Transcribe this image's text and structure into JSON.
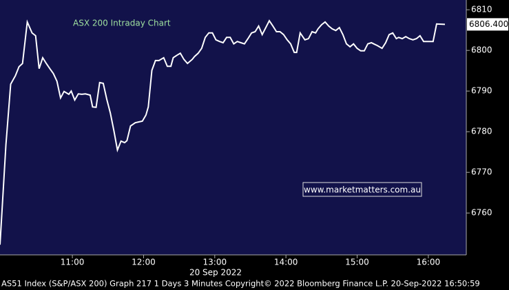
{
  "chart_data": {
    "type": "line",
    "title": "ASX 200 Intraday Chart",
    "x_label": "20 Sep 2022",
    "footer": "AS51 Index (S&P/ASX 200) Graph 217 1 Days 3 Minutes   Copyright© 2022 Bloomberg Finance L.P.   20-Sep-2022 16:50:59",
    "watermark": "www.marketmatters.com.au",
    "color": "#ffffff",
    "grid": false,
    "x": [
      599,
      604,
      608,
      612,
      615,
      618,
      622,
      626,
      629,
      632,
      635,
      638,
      641,
      644,
      647,
      650,
      653,
      657,
      659,
      662,
      665,
      668,
      671,
      675,
      677,
      680,
      683,
      686,
      689,
      692,
      695,
      698,
      701,
      704,
      706,
      709,
      713,
      716,
      719,
      722,
      724,
      727,
      730,
      733,
      737,
      740,
      743,
      745,
      748,
      751,
      754,
      757,
      761,
      763,
      766,
      769,
      772,
      775,
      778,
      781,
      784,
      787,
      790,
      793,
      796,
      799,
      802,
      805,
      808,
      811,
      814,
      817,
      820,
      823,
      826,
      829,
      832,
      835,
      838,
      841,
      844,
      847,
      849,
      852,
      856,
      859,
      862,
      865,
      867,
      870,
      873,
      876,
      879,
      882,
      885,
      888,
      891,
      894,
      897,
      900,
      903,
      906,
      909,
      912,
      914,
      917,
      921,
      924,
      927,
      930,
      933,
      935,
      938,
      941,
      944,
      947,
      950,
      953,
      956,
      959,
      962,
      964,
      967,
      974
    ],
    "values": [
      6752.2,
      6776.8,
      6791.7,
      6793.8,
      6796.0,
      6796.8,
      6807.0,
      6804.3,
      6803.6,
      6795.5,
      6798.2,
      6796.8,
      6795.5,
      6794.3,
      6792.4,
      6788.3,
      6789.9,
      6789.2,
      6790.0,
      6787.8,
      6789.3,
      6789.2,
      6789.3,
      6789.0,
      6786.1,
      6786.0,
      6792.1,
      6791.9,
      6788.0,
      6784.6,
      6780.2,
      6775.5,
      6777.7,
      6777.3,
      6777.8,
      6781.4,
      6782.2,
      6782.4,
      6782.6,
      6784.1,
      6786.1,
      6795.1,
      6797.5,
      6797.5,
      6798.2,
      6796.1,
      6796.1,
      6798.2,
      6798.8,
      6799.3,
      6797.8,
      6796.8,
      6797.8,
      6798.5,
      6799.3,
      6800.5,
      6803.2,
      6804.3,
      6804.3,
      6802.6,
      6802.2,
      6801.9,
      6803.2,
      6803.2,
      6801.6,
      6802.2,
      6801.9,
      6801.6,
      6802.9,
      6804.3,
      6804.6,
      6806.0,
      6803.9,
      6805.6,
      6807.3,
      6806.0,
      6804.6,
      6804.6,
      6803.9,
      6802.6,
      6801.6,
      6799.5,
      6799.5,
      6804.3,
      6802.6,
      6802.9,
      6804.6,
      6804.3,
      6805.3,
      6806.3,
      6807.0,
      6806.0,
      6805.3,
      6804.9,
      6805.6,
      6803.9,
      6801.6,
      6800.9,
      6801.6,
      6800.5,
      6799.9,
      6799.9,
      6801.6,
      6801.9,
      6801.6,
      6801.2,
      6800.5,
      6801.9,
      6803.9,
      6804.3,
      6802.9,
      6803.2,
      6802.9,
      6803.4,
      6802.9,
      6802.6,
      6802.9,
      6803.6,
      6802.2,
      6802.2,
      6802.2,
      6802.2,
      6806.5,
      6806.4
    ],
    "current_value": {
      "value": 6806.4,
      "label": "6806.400"
    },
    "xlim": [
      599,
      992
    ],
    "xticks": [
      {
        "value": 660,
        "label": "11:00"
      },
      {
        "value": 720,
        "label": "12:00"
      },
      {
        "value": 780,
        "label": "13:00"
      },
      {
        "value": 840,
        "label": "14:00"
      },
      {
        "value": 900,
        "label": "15:00"
      },
      {
        "value": 960,
        "label": "16:00"
      }
    ],
    "ylim": [
      6749.7,
      6812.4
    ],
    "yticks": [
      6760,
      6770,
      6780,
      6790,
      6800,
      6810
    ]
  }
}
